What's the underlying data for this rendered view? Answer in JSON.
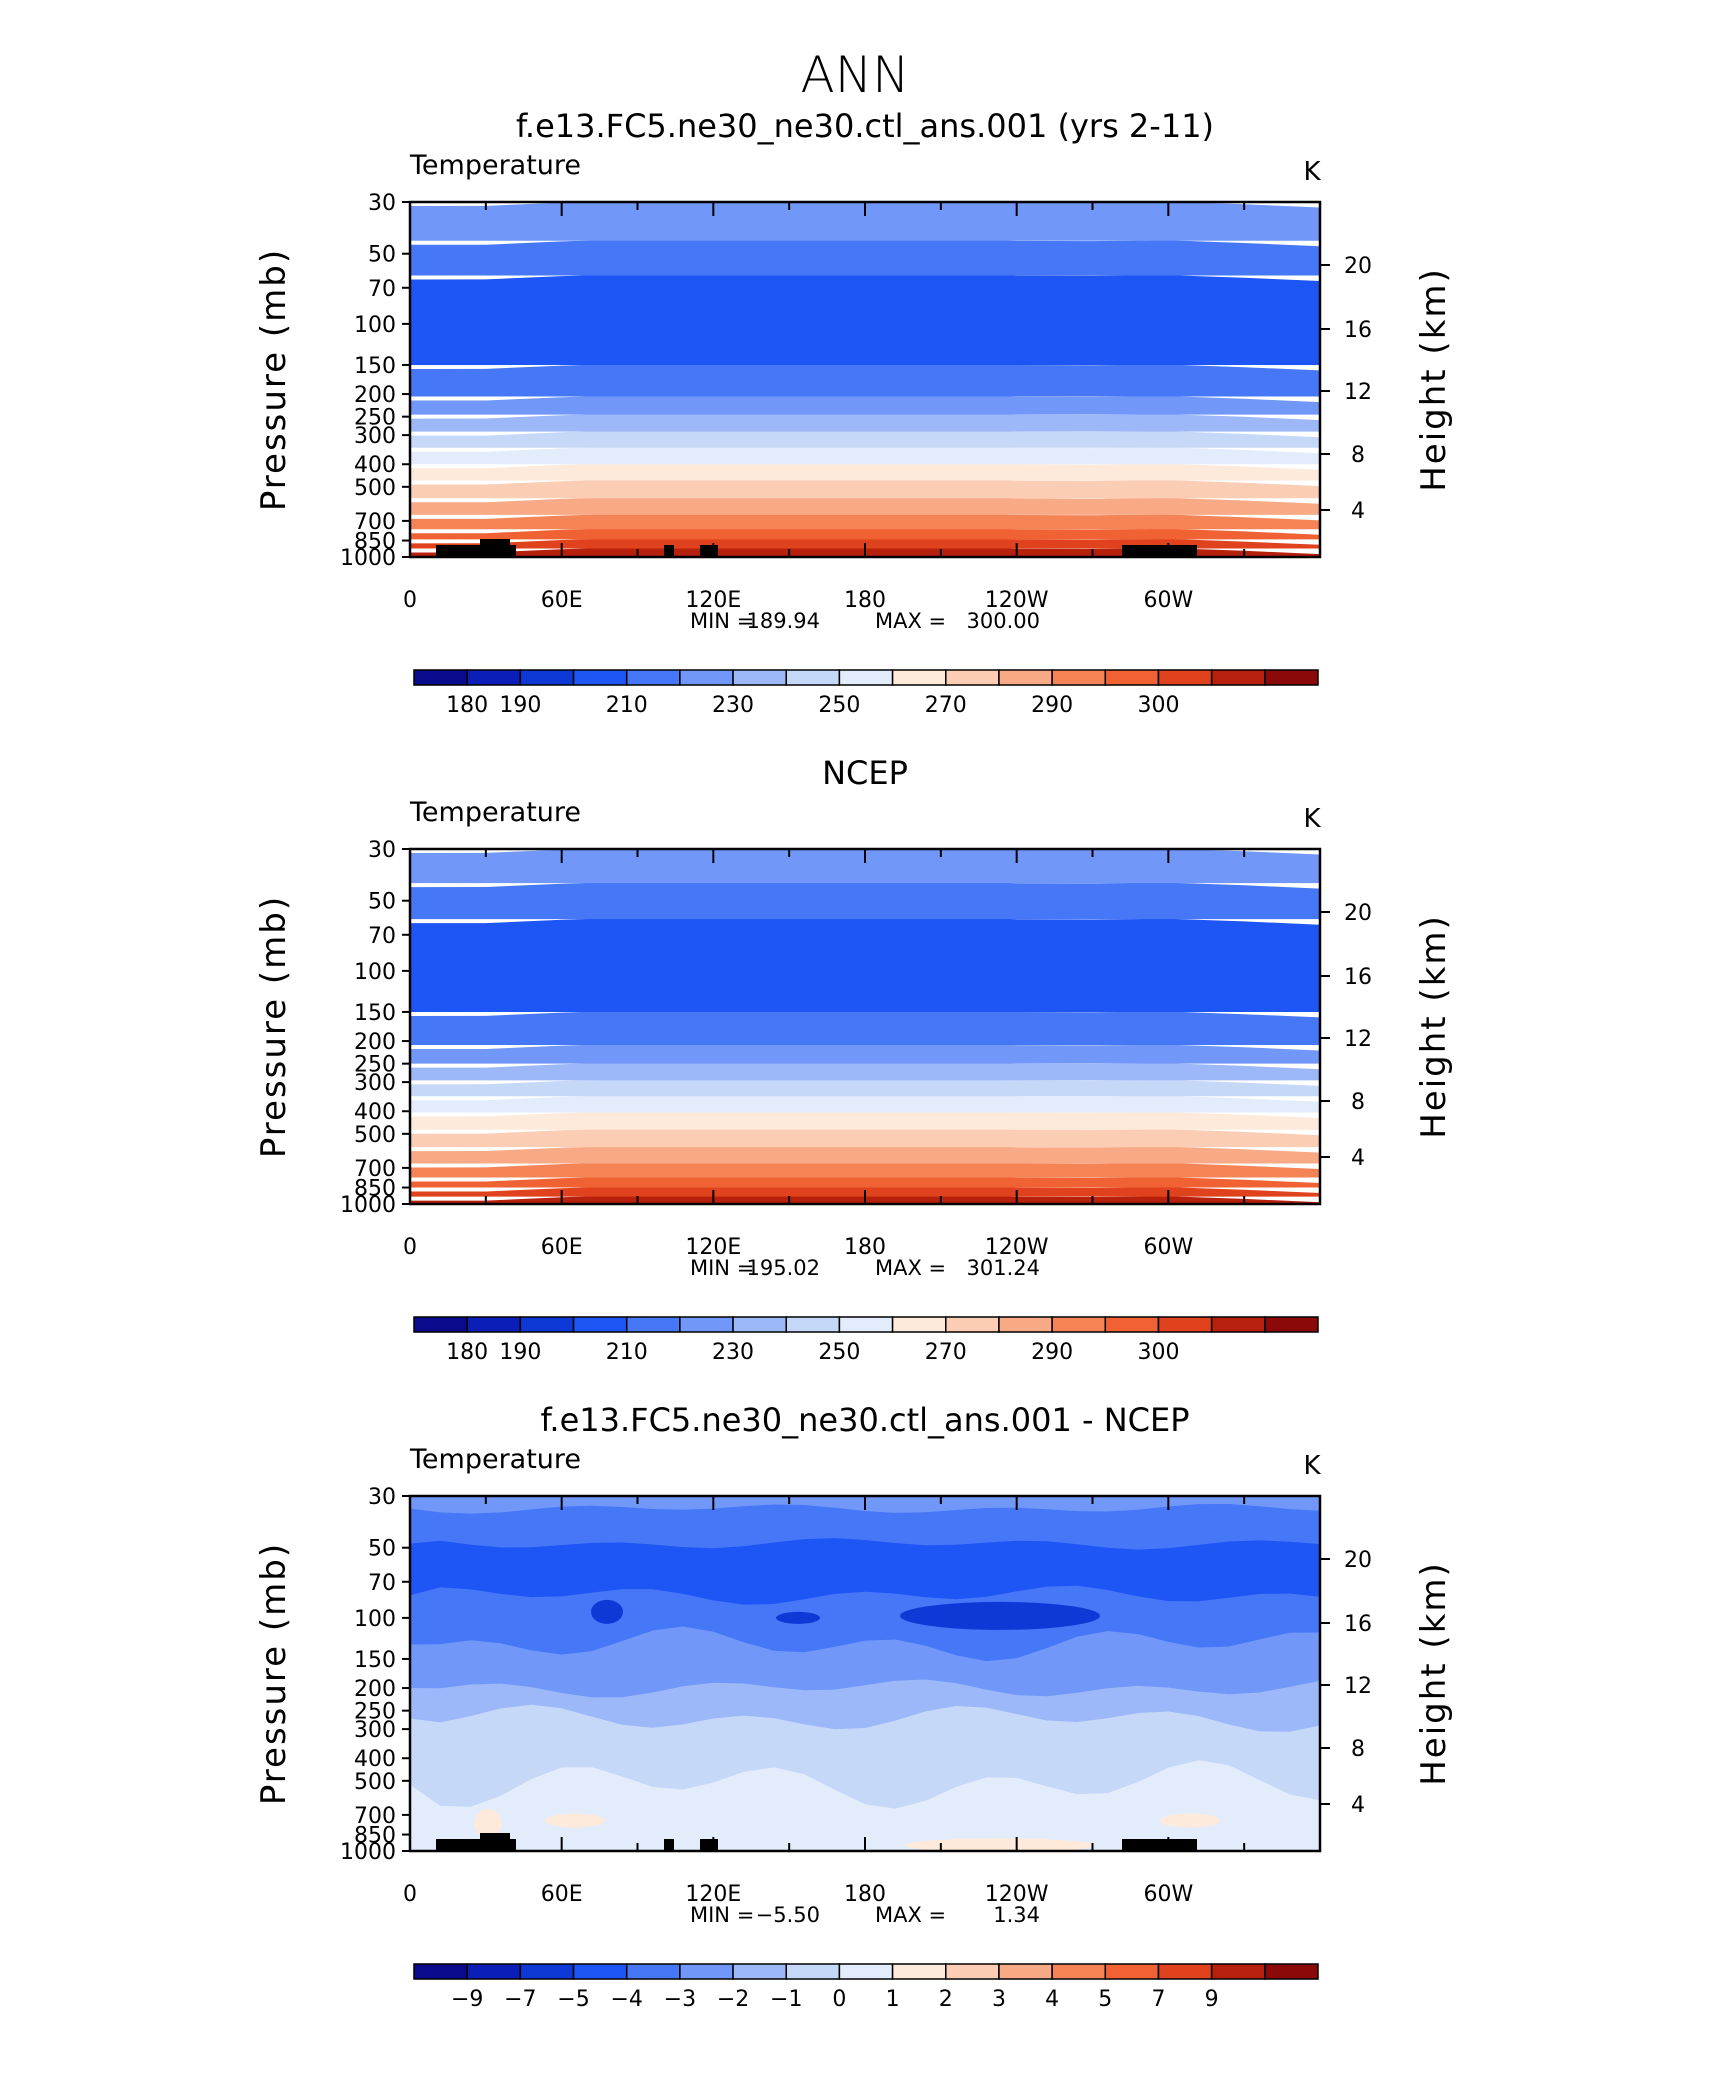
{
  "figure_title": "ANN",
  "panels": [
    {
      "title": "f.e13.FC5.ne30_ne30.ctl_ans.001 (yrs 2-11)",
      "variable": "Temperature",
      "units": "K",
      "ylabel_left": "Pressure (mb)",
      "ylabel_right": "Height (km)",
      "stats": {
        "min_label": "MIN =",
        "min": "189.94",
        "max_label": "MAX =",
        "max": "300.00"
      },
      "colorbar_labels": [
        "180",
        "190",
        "210",
        "230",
        "250",
        "270",
        "290",
        "300"
      ],
      "topography": true
    },
    {
      "title": "NCEP",
      "variable": "Temperature",
      "units": "K",
      "ylabel_left": "Pressure (mb)",
      "ylabel_right": "Height (km)",
      "stats": {
        "min_label": "MIN =",
        "min": "195.02",
        "max_label": "MAX =",
        "max": "301.24"
      },
      "colorbar_labels": [
        "180",
        "190",
        "210",
        "230",
        "250",
        "270",
        "290",
        "300"
      ],
      "topography": false
    },
    {
      "title": "f.e13.FC5.ne30_ne30.ctl_ans.001 - NCEP",
      "variable": "Temperature",
      "units": "K",
      "ylabel_left": "Pressure (mb)",
      "ylabel_right": "Height (km)",
      "stats": {
        "min_label": "MIN =",
        "min": "−5.50",
        "max_label": "MAX =",
        "max": "1.34"
      },
      "colorbar_labels": [
        "−9",
        "−7",
        "−5",
        "−4",
        "−3",
        "−2",
        "−1",
        "0",
        "1",
        "2",
        "3",
        "4",
        "5",
        "7",
        "9"
      ],
      "topography": true
    }
  ],
  "colors": {
    "palette": [
      "#0a0a8c",
      "#0b1fb8",
      "#0d3ad6",
      "#1e55f5",
      "#4677f7",
      "#7198f8",
      "#9db8f8",
      "#c6d8f8",
      "#e2ecfb",
      "#fdeadb",
      "#fbcdb5",
      "#f8a985",
      "#f48456",
      "#f06233",
      "#e0421d",
      "#b8200e",
      "#8a0a0a"
    ],
    "topography": "#000000"
  },
  "chart_data": [
    {
      "type": "contour",
      "x_tick_labels": [
        "0",
        "60E",
        "120E",
        "180",
        "120W",
        "60W"
      ],
      "y_tick_labels": [
        "30",
        "50",
        "70",
        "100",
        "150",
        "200",
        "250",
        "300",
        "400",
        "500",
        "700",
        "850",
        "1000"
      ],
      "y_tick_values": [
        30,
        50,
        70,
        100,
        150,
        200,
        250,
        300,
        400,
        500,
        700,
        850,
        1000
      ],
      "y_scale": "log",
      "y_reversed": true,
      "ylim": [
        1000,
        30
      ],
      "right_axis_ticks": [
        20,
        16,
        12,
        8,
        4
      ],
      "contour_levels": [
        180,
        185,
        190,
        200,
        210,
        220,
        230,
        240,
        250,
        260,
        270,
        280,
        290,
        295,
        300
      ],
      "band_colors_bottom_to_top": [
        "#b8200e",
        "#e0421d",
        "#f06233",
        "#f48456",
        "#f8a985",
        "#fbcdb5",
        "#fdeadb",
        "#e2ecfb",
        "#c6d8f8",
        "#9db8f8",
        "#7198f8",
        "#4677f7",
        "#1e55f5",
        "#4677f7",
        "#7198f8"
      ]
    },
    {
      "type": "contour",
      "x_tick_labels": [
        "0",
        "60E",
        "120E",
        "180",
        "120W",
        "60W"
      ],
      "y_tick_labels": [
        "30",
        "50",
        "70",
        "100",
        "150",
        "200",
        "250",
        "300",
        "400",
        "500",
        "700",
        "850",
        "1000"
      ],
      "y_tick_values": [
        30,
        50,
        70,
        100,
        150,
        200,
        250,
        300,
        400,
        500,
        700,
        850,
        1000
      ],
      "y_scale": "log",
      "y_reversed": true,
      "ylim": [
        1000,
        30
      ],
      "right_axis_ticks": [
        20,
        16,
        12,
        8,
        4
      ],
      "contour_levels": [
        180,
        185,
        190,
        200,
        210,
        220,
        230,
        240,
        250,
        260,
        270,
        280,
        290,
        295,
        300
      ],
      "band_colors_bottom_to_top": [
        "#b8200e",
        "#e0421d",
        "#f06233",
        "#f48456",
        "#f8a985",
        "#fbcdb5",
        "#fdeadb",
        "#e2ecfb",
        "#c6d8f8",
        "#9db8f8",
        "#7198f8",
        "#4677f7",
        "#1e55f5",
        "#4677f7",
        "#7198f8"
      ]
    },
    {
      "type": "contour",
      "x_tick_labels": [
        "0",
        "60E",
        "120E",
        "180",
        "120W",
        "60W"
      ],
      "y_tick_labels": [
        "30",
        "50",
        "70",
        "100",
        "150",
        "200",
        "250",
        "300",
        "400",
        "500",
        "700",
        "850",
        "1000"
      ],
      "y_tick_values": [
        30,
        50,
        70,
        100,
        150,
        200,
        250,
        300,
        400,
        500,
        700,
        850,
        1000
      ],
      "y_scale": "log",
      "y_reversed": true,
      "ylim": [
        1000,
        30
      ],
      "right_axis_ticks": [
        20,
        16,
        12,
        8,
        4
      ],
      "contour_levels": [
        -9,
        -7,
        -5,
        -4,
        -3,
        -2,
        -1,
        0,
        1,
        2,
        3,
        4,
        5,
        7,
        9
      ],
      "band_colors_bottom_to_top": [
        "#e2ecfb",
        "#e2ecfb",
        "#c6d8f8",
        "#9db8f8",
        "#7198f8",
        "#4677f7",
        "#1e55f5",
        "#4677f7",
        "#7198f8"
      ]
    }
  ]
}
